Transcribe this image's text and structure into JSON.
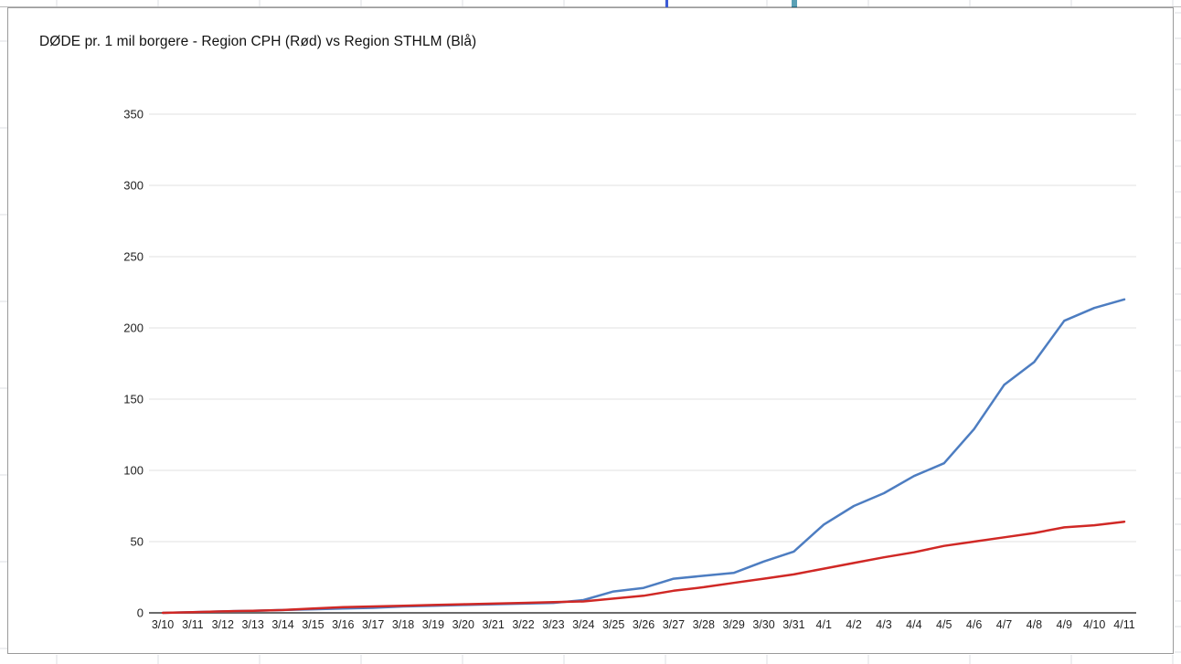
{
  "page": {
    "title": "DØDE pr. 1 mil borgere - Region CPH (Rød) vs Region STHLM (Blå)"
  },
  "chart_data": {
    "type": "line",
    "title": "DØDE pr. 1 mil borgere - Region CPH (Rød) vs Region STHLM (Blå)",
    "xlabel": "",
    "ylabel": "",
    "ylim": [
      0,
      350
    ],
    "y_ticks": [
      0,
      50,
      100,
      150,
      200,
      250,
      300,
      350
    ],
    "grid": true,
    "legend_position": "none",
    "categories": [
      "3/10",
      "3/11",
      "3/12",
      "3/13",
      "3/14",
      "3/15",
      "3/16",
      "3/17",
      "3/18",
      "3/19",
      "3/20",
      "3/21",
      "3/22",
      "3/23",
      "3/24",
      "3/25",
      "3/26",
      "3/27",
      "3/28",
      "3/29",
      "3/30",
      "3/31",
      "4/1",
      "4/2",
      "4/3",
      "4/4",
      "4/5",
      "4/6",
      "4/7",
      "4/8",
      "4/9",
      "4/10",
      "4/11"
    ],
    "series": [
      {
        "name": "Region STHLM (Blå)",
        "color": "#4d7dc1",
        "values": [
          0,
          0.5,
          1,
          1.5,
          2,
          2.5,
          3,
          3.5,
          4.5,
          5,
          5.5,
          6,
          6.5,
          7,
          9,
          15,
          17.5,
          24,
          26,
          28,
          36,
          43,
          62,
          75,
          84,
          96,
          105,
          129,
          160,
          176,
          205,
          214,
          220
        ]
      },
      {
        "name": "Region CPH (Rød)",
        "color": "#d02825",
        "values": [
          0,
          0.5,
          1,
          1.5,
          2,
          3,
          4,
          4.5,
          5,
          5.5,
          6,
          6.5,
          7,
          7.5,
          8,
          10,
          12,
          15.5,
          18,
          21,
          24,
          27,
          31,
          35,
          39,
          42.5,
          47,
          50,
          53,
          56,
          60,
          61.5,
          64
        ]
      }
    ],
    "style": {
      "gridline_color": "#e2e2e2",
      "axis_color": "#6b6b6b",
      "tick_label_color": "#1f1f1f",
      "background_gridline_color": "#dcdfe3"
    }
  }
}
